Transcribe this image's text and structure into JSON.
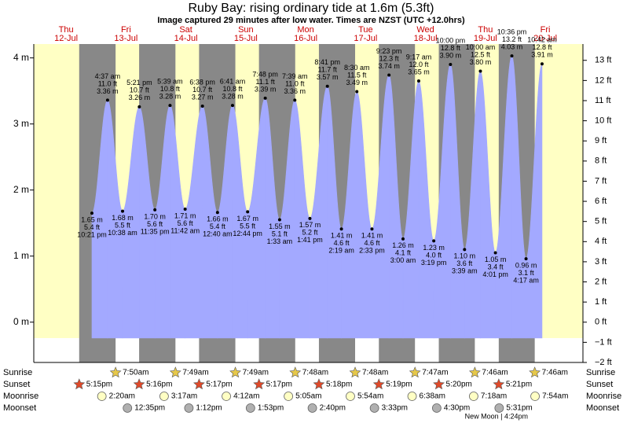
{
  "chart_data": {
    "type": "tide",
    "title": "Ruby Bay: rising  ordinary tide at 1.6m (5.3ft)",
    "subtitle": "Image captured 29 minutes after low water. Times are NZST (UTC +12.0hrs)",
    "ylim": [
      -0.61,
      4.21
    ],
    "yticks": [
      {
        "value": 0,
        "label": "0 m"
      },
      {
        "value": 1,
        "label": "1 m"
      },
      {
        "value": 2,
        "label": "2 m"
      },
      {
        "value": 3,
        "label": "3 m"
      },
      {
        "value": 4,
        "label": "4 m"
      }
    ],
    "y2lim": [
      -2,
      13.81
    ],
    "y2ticks": [
      {
        "value": -2,
        "label": "−2 ft"
      },
      {
        "value": -1,
        "label": "−1 ft"
      },
      {
        "value": 0,
        "label": "0 ft"
      },
      {
        "value": 1,
        "label": "1 ft"
      },
      {
        "value": 2,
        "label": "2 ft"
      },
      {
        "value": 3,
        "label": "3 ft"
      },
      {
        "value": 4,
        "label": "4 ft"
      },
      {
        "value": 5,
        "label": "5 ft"
      },
      {
        "value": 6,
        "label": "6 ft"
      },
      {
        "value": 7,
        "label": "7 ft"
      },
      {
        "value": 8,
        "label": "8 ft"
      },
      {
        "value": 9,
        "label": "9 ft"
      },
      {
        "value": 10,
        "label": "10 ft"
      },
      {
        "value": 11,
        "label": "11 ft"
      },
      {
        "value": 12,
        "label": "12 ft"
      },
      {
        "value": 13,
        "label": "13 ft"
      }
    ],
    "water_color": "#a3a9ff",
    "rows": {
      "sunrise": "Sunrise",
      "sunset": "Sunset",
      "moonrise": "Moonrise",
      "moonset": "Moonset"
    },
    "new_moon": "New Moon | 4:24pm",
    "days": [
      {
        "name": "Thu",
        "date": "12-Jul",
        "sunset": "5:15pm",
        "tides": [
          {
            "time": "10:21 pm",
            "m": 1.65,
            "m_label": "1.65 m",
            "ft": 5.4,
            "ft_label": "5.4 ft"
          }
        ]
      },
      {
        "name": "Fri",
        "date": "13-Jul",
        "sunrise": "7:50am",
        "sunset": "5:16pm",
        "moonrise": "2:20am",
        "moonset": "12:35pm",
        "tides": [
          {
            "time": "4:37 am",
            "m": 3.36,
            "m_label": "3.36 m",
            "ft": 11.0,
            "ft_label": "11.0 ft"
          },
          {
            "time": "10:38 am",
            "m": 1.68,
            "m_label": "1.68 m",
            "ft": 5.5,
            "ft_label": "5.5 ft"
          },
          {
            "time": "5:21 pm",
            "m": 3.26,
            "m_label": "3.26 m",
            "ft": 10.7,
            "ft_label": "10.7 ft"
          },
          {
            "time": "11:35 pm",
            "m": 1.7,
            "m_label": "1.70 m",
            "ft": 5.6,
            "ft_label": "5.6 ft"
          }
        ]
      },
      {
        "name": "Sat",
        "date": "14-Jul",
        "sunrise": "7:49am",
        "sunset": "5:17pm",
        "moonrise": "3:17am",
        "moonset": "1:12pm",
        "tides": [
          {
            "time": "5:39 am",
            "m": 3.28,
            "m_label": "3.28 m",
            "ft": 10.8,
            "ft_label": "10.8 ft"
          },
          {
            "time": "11:42 am",
            "m": 1.71,
            "m_label": "1.71 m",
            "ft": 5.6,
            "ft_label": "5.6 ft"
          },
          {
            "time": "6:38 pm",
            "m": 3.27,
            "m_label": "3.27 m",
            "ft": 10.7,
            "ft_label": "10.7 ft"
          }
        ]
      },
      {
        "name": "Sun",
        "date": "15-Jul",
        "sunrise": "7:49am",
        "sunset": "5:17pm",
        "moonrise": "4:12am",
        "moonset": "1:53pm",
        "tides": [
          {
            "time": "12:40 am",
            "m": 1.66,
            "m_label": "1.66 m",
            "ft": 5.4,
            "ft_label": "5.4 ft"
          },
          {
            "time": "6:41 am",
            "m": 3.28,
            "m_label": "3.28 m",
            "ft": 10.8,
            "ft_label": "10.8 ft"
          },
          {
            "time": "12:44 pm",
            "m": 1.67,
            "m_label": "1.67 m",
            "ft": 5.5,
            "ft_label": "5.5 ft"
          },
          {
            "time": "7:48 pm",
            "m": 3.39,
            "m_label": "3.39 m",
            "ft": 11.1,
            "ft_label": "11.1 ft"
          }
        ]
      },
      {
        "name": "Mon",
        "date": "16-Jul",
        "sunrise": "7:48am",
        "sunset": "5:18pm",
        "moonrise": "5:05am",
        "moonset": "2:40pm",
        "tides": [
          {
            "time": "1:33 am",
            "m": 1.55,
            "m_label": "1.55 m",
            "ft": 5.1,
            "ft_label": "5.1 ft"
          },
          {
            "time": "7:39 am",
            "m": 3.36,
            "m_label": "3.36 m",
            "ft": 11.0,
            "ft_label": "11.0 ft"
          },
          {
            "time": "1:41 pm",
            "m": 1.57,
            "m_label": "1.57 m",
            "ft": 5.2,
            "ft_label": "5.2 ft"
          },
          {
            "time": "8:41 pm",
            "m": 3.57,
            "m_label": "3.57 m",
            "ft": 11.7,
            "ft_label": "11.7 ft"
          }
        ]
      },
      {
        "name": "Tue",
        "date": "17-Jul",
        "sunrise": "7:48am",
        "sunset": "5:19pm",
        "moonrise": "5:54am",
        "moonset": "3:33pm",
        "tides": [
          {
            "time": "2:19 am",
            "m": 1.41,
            "m_label": "1.41 m",
            "ft": 4.6,
            "ft_label": "4.6 ft"
          },
          {
            "time": "8:30 am",
            "m": 3.49,
            "m_label": "3.49 m",
            "ft": 11.5,
            "ft_label": "11.5 ft"
          },
          {
            "time": "2:33 pm",
            "m": 1.41,
            "m_label": "1.41 m",
            "ft": 4.6,
            "ft_label": "4.6 ft"
          },
          {
            "time": "9:23 pm",
            "m": 3.74,
            "m_label": "3.74 m",
            "ft": 12.3,
            "ft_label": "12.3 ft"
          }
        ]
      },
      {
        "name": "Wed",
        "date": "18-Jul",
        "sunrise": "7:47am",
        "sunset": "5:20pm",
        "moonrise": "6:38am",
        "moonset": "4:30pm",
        "tides": [
          {
            "time": "3:00 am",
            "m": 1.26,
            "m_label": "1.26 m",
            "ft": 4.1,
            "ft_label": "4.1 ft"
          },
          {
            "time": "9:17 am",
            "m": 3.65,
            "m_label": "3.65 m",
            "ft": 12.0,
            "ft_label": "12.0 ft"
          },
          {
            "time": "3:19 pm",
            "m": 1.23,
            "m_label": "1.23 m",
            "ft": 4.0,
            "ft_label": "4.0 ft"
          },
          {
            "time": "10:00 pm",
            "m": 3.9,
            "m_label": "3.90 m",
            "ft": 12.8,
            "ft_label": "12.8 ft"
          }
        ]
      },
      {
        "name": "Thu",
        "date": "19-Jul",
        "sunrise": "7:46am",
        "sunset": "5:21pm",
        "moonrise": "7:18am",
        "moonset": "5:31pm",
        "tides": [
          {
            "time": "3:39 am",
            "m": 1.1,
            "m_label": "1.10 m",
            "ft": 3.6,
            "ft_label": "3.6 ft"
          },
          {
            "time": "10:00 am",
            "m": 3.8,
            "m_label": "3.80 m",
            "ft": 12.5,
            "ft_label": "12.5 ft"
          },
          {
            "time": "4:01 pm",
            "m": 1.05,
            "m_label": "1.05 m",
            "ft": 3.4,
            "ft_label": "3.4 ft"
          },
          {
            "time": "10:36 pm",
            "m": 4.03,
            "m_label": "4.03 m",
            "ft": 13.2,
            "ft_label": "13.2 ft"
          }
        ]
      },
      {
        "name": "Fri",
        "date": "20-Jul",
        "sunrise": "7:46am",
        "moonrise": "7:54am",
        "tides": [
          {
            "time": "4:17 am",
            "m": 0.96,
            "m_label": "0.96 m",
            "ft": 3.1,
            "ft_label": "3.1 ft"
          },
          {
            "time": "10:42 am",
            "m": 3.91,
            "m_label": "3.91 m",
            "ft": 12.8,
            "ft_label": "12.8 ft"
          }
        ]
      }
    ]
  }
}
